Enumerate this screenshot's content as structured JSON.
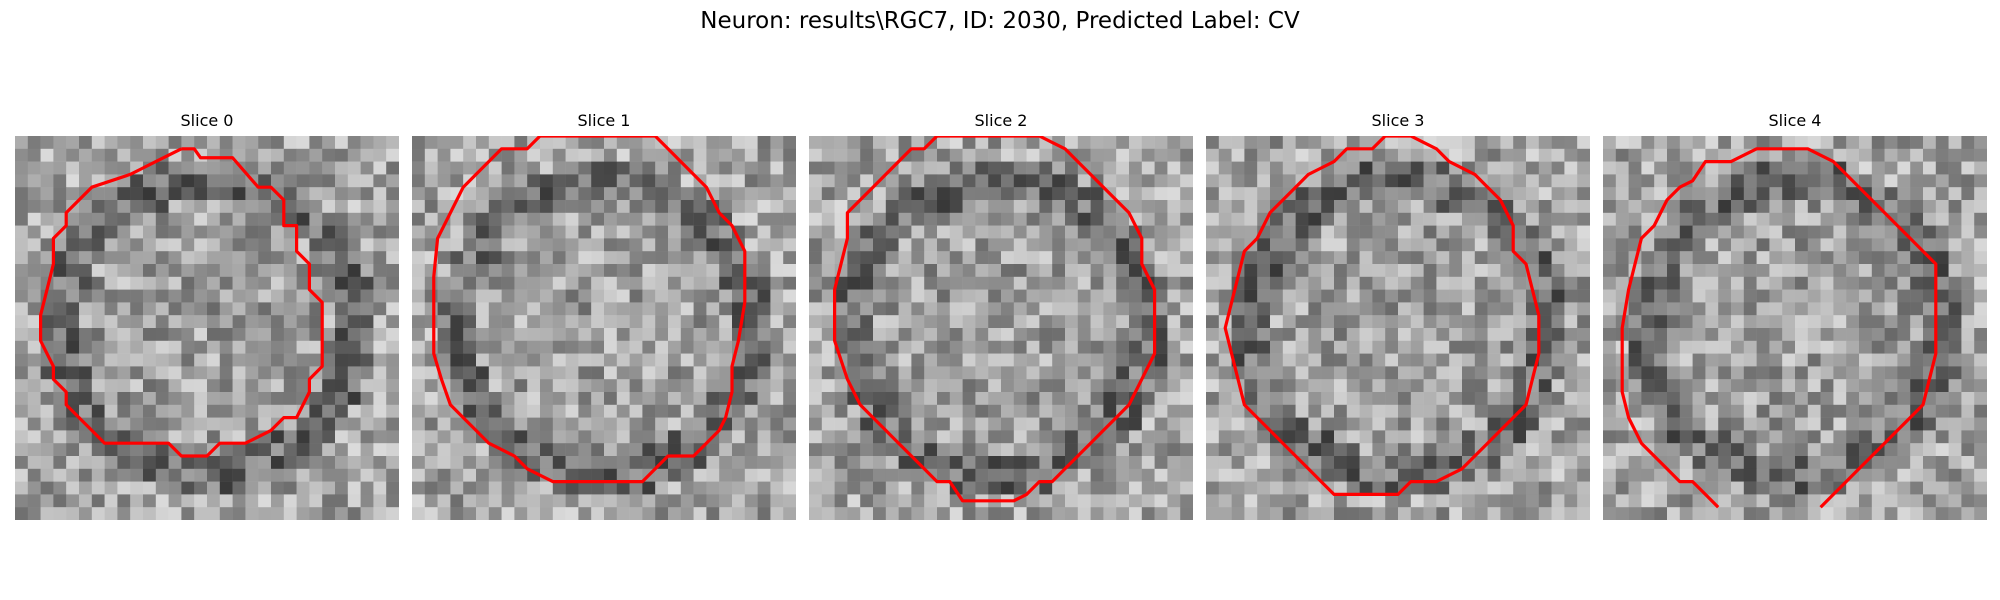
{
  "figure": {
    "title": "Neuron: results\\RGC7, ID: 2030, Predicted Label: CV",
    "contour_color": "#ff0000"
  },
  "slices": [
    {
      "label": "Slice 0"
    },
    {
      "label": "Slice 1"
    },
    {
      "label": "Slice 2"
    },
    {
      "label": "Slice 3"
    },
    {
      "label": "Slice 4"
    }
  ]
}
